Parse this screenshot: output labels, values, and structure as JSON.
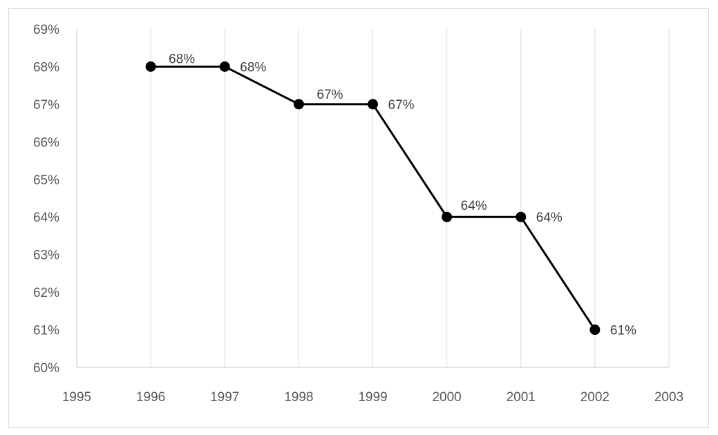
{
  "chart_data": {
    "type": "scatter",
    "title": "",
    "xlabel": "",
    "ylabel": "",
    "x": [
      1996,
      1997,
      1998,
      1999,
      2000,
      2001,
      2002
    ],
    "y": [
      0.68,
      0.68,
      0.67,
      0.67,
      0.64,
      0.64,
      0.61
    ],
    "data_labels": [
      "68%",
      "68%",
      "67%",
      "67%",
      "64%",
      "64%",
      "61%"
    ],
    "xlim": [
      1995,
      2003
    ],
    "ylim": [
      0.6,
      0.69
    ],
    "x_ticks": [
      "1995",
      "1996",
      "1997",
      "1998",
      "1999",
      "2000",
      "2001",
      "2002",
      "2003"
    ],
    "y_ticks": [
      "60%",
      "61%",
      "62%",
      "63%",
      "64%",
      "65%",
      "66%",
      "67%",
      "68%",
      "69%"
    ],
    "lines_connecting_points": true,
    "grid": "vertical",
    "legend": "none",
    "colors": {
      "series": "#000000",
      "grid": "#d9d9d9",
      "axis_text": "#595959",
      "label_text": "#404040"
    }
  }
}
